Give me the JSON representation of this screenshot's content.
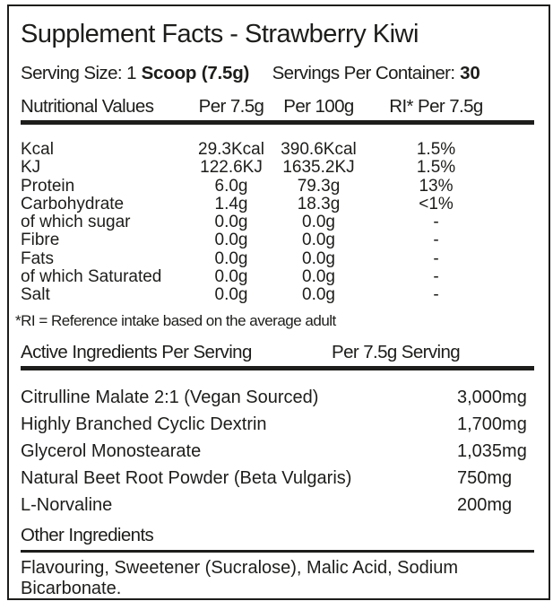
{
  "colors": {
    "ink": "#1d1d1b",
    "background": "#ffffff"
  },
  "label": {
    "title": "Supplement Facts - Strawberry Kiwi",
    "serving": {
      "size_label": "Serving Size: 1",
      "size_value": "Scoop (7.5g)",
      "container_label": "Servings Per Container:",
      "container_value": "30"
    },
    "nutritional": {
      "columns": {
        "name": "Nutritional Values",
        "per_serving": "Per 7.5g",
        "per_100": "Per 100g",
        "ri": "RI* Per 7.5g"
      },
      "rows": [
        {
          "label": "Kcal",
          "per_serving": "29.3Kcal",
          "per_100": "390.6Kcal",
          "ri": "1.5%"
        },
        {
          "label": "KJ",
          "per_serving": "122.6KJ",
          "per_100": "1635.2KJ",
          "ri": "1.5%"
        },
        {
          "label": "Protein",
          "per_serving": "6.0g",
          "per_100": "79.3g",
          "ri": "13%"
        },
        {
          "label": "Carbohydrate",
          "per_serving": "1.4g",
          "per_100": "18.3g",
          "ri": "<1%"
        },
        {
          "label": "of which sugar",
          "per_serving": "0.0g",
          "per_100": "0.0g",
          "ri": "-"
        },
        {
          "label": "Fibre",
          "per_serving": "0.0g",
          "per_100": "0.0g",
          "ri": "-"
        },
        {
          "label": "Fats",
          "per_serving": "0.0g",
          "per_100": "0.0g",
          "ri": "-"
        },
        {
          "label": "of which Saturated",
          "per_serving": "0.0g",
          "per_100": "0.0g",
          "ri": "-"
        },
        {
          "label": "Salt",
          "per_serving": "0.0g",
          "per_100": "0.0g",
          "ri": "-"
        }
      ],
      "footnote": "*RI = Reference intake based on the average adult"
    },
    "active_ingredients": {
      "heading": "Active Ingredients Per Serving",
      "column_heading": "Per 7.5g Serving",
      "rows": [
        {
          "name": "Citrulline Malate 2:1 (Vegan Sourced)",
          "amount": "3,000mg"
        },
        {
          "name": "Highly Branched Cyclic Dextrin",
          "amount": "1,700mg"
        },
        {
          "name": "Glycerol Monostearate",
          "amount": "1,035mg"
        },
        {
          "name": "Natural Beet Root Powder (Beta Vulgaris)",
          "amount": "750mg"
        },
        {
          "name": "L-Norvaline",
          "amount": "200mg"
        }
      ]
    },
    "other_ingredients": {
      "heading": "Other Ingredients",
      "text": "Flavouring, Sweetener (Sucralose), Malic Acid, Sodium Bicarbonate."
    }
  }
}
